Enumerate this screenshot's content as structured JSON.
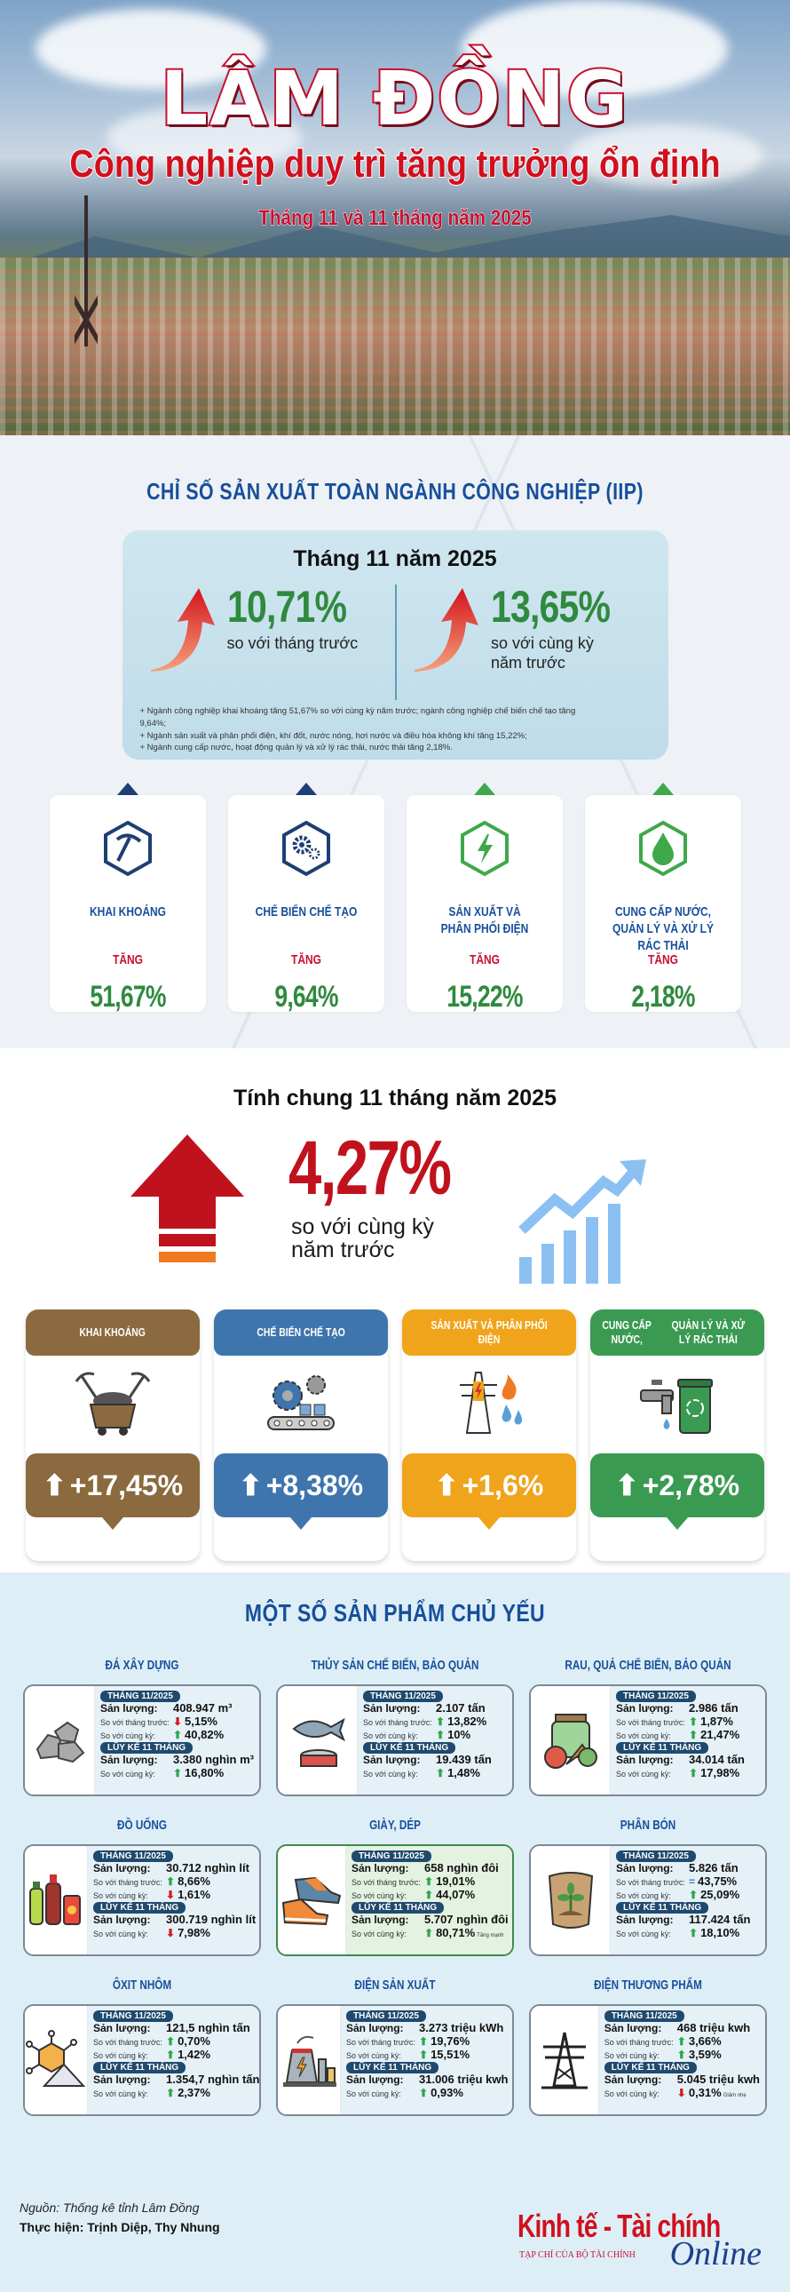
{
  "hero": {
    "title": "LÂM ĐỒNG",
    "subtitle": "Công nghiệp duy trì tăng trưởng ổn định",
    "period": "Tháng 11 và 11 tháng năm 2025"
  },
  "iip": {
    "section_title": "CHỈ SỐ SẢN XUẤT TOÀN NGÀNH CÔNG NGHIỆP (IIP)",
    "box_title": "Tháng 11 năm 2025",
    "mom": {
      "value": "10,71%",
      "label": "so với tháng trước"
    },
    "yoy": {
      "value": "13,65%",
      "label_line1": "so với cùng kỳ",
      "label_line2": "năm trước"
    },
    "notes": [
      "+ Ngành công nghiệp khai khoáng tăng 51,67% so với cùng kỳ năm trước; ngành công nghiệp chế biến chế tạo tăng 9,64%;",
      "+ Ngành sản xuất và phân phối điện, khí đốt, nước nóng, hơi nước và điều hòa không khí tăng 15,22%;",
      "+ Ngành cung cấp nước, hoạt động quản lý và xử lý rác thải, nước thải tăng 2,18%."
    ],
    "sectors": [
      {
        "name": "KHAI KHOÁNG",
        "name2": "",
        "change_label": "TĂNG",
        "value": "51,67%",
        "icon": "pickaxe-icon"
      },
      {
        "name": "CHẾ BIẾN CHẾ TẠO",
        "name2": "",
        "change_label": "TĂNG",
        "value": "9,64%",
        "icon": "gears-icon"
      },
      {
        "name": "SẢN XUẤT VÀ",
        "name2": "PHÂN PHỐI ĐIỆN",
        "change_label": "TĂNG",
        "value": "15,22%",
        "icon": "lightning-icon"
      },
      {
        "name": "CUNG CẤP NƯỚC,",
        "name2": "QUẢN LÝ VÀ XỬ LÝ RÁC THẢI",
        "change_label": "TĂNG",
        "value": "2,18%",
        "icon": "water-drop-icon"
      }
    ]
  },
  "cumulative": {
    "title": "Tính chung 11 tháng năm 2025",
    "value": "4,27%",
    "label_line1": "so với cùng kỳ",
    "label_line2": "năm trước",
    "sectors": [
      {
        "name": "KHAI KHOÁNG",
        "name2": "",
        "value": "+17,45%",
        "color": "#8a6a3e",
        "icon": "mine-cart-icon"
      },
      {
        "name": "CHẾ BIẾN CHẾ TẠO",
        "name2": "",
        "value": "+8,38%",
        "color": "#3f75ad",
        "icon": "conveyor-gears-icon"
      },
      {
        "name": "SẢN XUẤT VÀ PHÂN PHỐI ĐIỆN",
        "name2": "",
        "value": "+1,6%",
        "color": "#f0a41c",
        "icon": "power-tower-icon"
      },
      {
        "name": "CUNG CẤP NƯỚC,",
        "name2": "QUẢN LÝ VÀ XỬ LÝ RÁC THẢI",
        "value": "+2,78%",
        "color": "#3a9a52",
        "icon": "faucet-bin-icon"
      }
    ]
  },
  "products": {
    "section_title": "MỘT SỐ SẢN PHẨM CHỦ YẾU",
    "month_tag": "THÁNG 11/2025",
    "cum_tag": "LŨY KẾ 11 THÁNG",
    "lbl_output": "Sản lượng:",
    "lbl_mom": "So với tháng trước:",
    "lbl_yoy": "So với cùng kỳ:",
    "items": [
      {
        "name": "ĐÁ XÂY DỰNG",
        "icon": "rocks-icon",
        "month_output": "408.947 m³",
        "mom": "5,15%",
        "mom_dir": "down",
        "yoy": "40,82%",
        "yoy_dir": "up",
        "cum_output": "3.380 nghìn m³",
        "cum_yoy": "16,80%",
        "cum_dir": "up",
        "cum_note": ""
      },
      {
        "name": "THỦY SẢN CHẾ BIẾN, BẢO QUẢN",
        "icon": "fish-can-icon",
        "month_output": "2.107 tấn",
        "mom": "13,82%",
        "mom_dir": "up",
        "yoy": "10%",
        "yoy_dir": "up",
        "cum_output": "19.439 tấn",
        "cum_yoy": "1,48%",
        "cum_dir": "up",
        "cum_note": ""
      },
      {
        "name": "RAU, QUẢ CHẾ BIẾN, BẢO QUẢN",
        "icon": "vegetable-jar-icon",
        "month_output": "2.986 tấn",
        "mom": "1,87%",
        "mom_dir": "up",
        "yoy": "21,47%",
        "yoy_dir": "up",
        "cum_output": "34.014 tấn",
        "cum_yoy": "17,98%",
        "cum_dir": "up",
        "cum_note": ""
      },
      {
        "name": "ĐỒ UỐNG",
        "icon": "beverage-bottles-icon",
        "month_output": "30.712 nghìn lít",
        "mom": "8,66%",
        "mom_dir": "up",
        "yoy": "1,61%",
        "yoy_dir": "down",
        "cum_output": "300.719 nghìn lít",
        "cum_yoy": "7,98%",
        "cum_dir": "down",
        "cum_note": ""
      },
      {
        "name": "GIÀY, DÉP",
        "icon": "sneakers-icon",
        "month_output": "658 nghìn đôi",
        "mom": "19,01%",
        "mom_dir": "up",
        "yoy": "44,07%",
        "yoy_dir": "up",
        "cum_output": "5.707 nghìn đôi",
        "cum_yoy": "80,71%",
        "cum_dir": "up",
        "cum_note": "Tăng mạnh"
      },
      {
        "name": "PHÂN BÓN",
        "icon": "fertilizer-bag-icon",
        "month_output": "5.826 tấn",
        "mom": "43,75%",
        "mom_dir": "equal",
        "yoy": "25,09%",
        "yoy_dir": "up",
        "cum_output": "117.424 tấn",
        "cum_yoy": "18,10%",
        "cum_dir": "up",
        "cum_note": ""
      },
      {
        "name": "ÔXIT NHÔM",
        "icon": "alumina-molecule-icon",
        "month_output": "121,5 nghìn tấn",
        "mom": "0,70%",
        "mom_dir": "up",
        "yoy": "1,42%",
        "yoy_dir": "up",
        "cum_output": "1.354,7 nghìn tấn",
        "cum_yoy": "2,37%",
        "cum_dir": "up",
        "cum_note": ""
      },
      {
        "name": "ĐIỆN SẢN XUẤT",
        "icon": "power-plant-icon",
        "month_output": "3.273 triệu kWh",
        "mom": "19,76%",
        "mom_dir": "up",
        "yoy": "15,51%",
        "yoy_dir": "up",
        "cum_output": "31.006 triệu kwh",
        "cum_yoy": "0,93%",
        "cum_dir": "up",
        "cum_note": ""
      },
      {
        "name": "ĐIỆN THƯƠNG PHẨM",
        "icon": "transmission-tower-icon",
        "month_output": "468 triệu kwh",
        "mom": "3,66%",
        "mom_dir": "up",
        "yoy": "3,59%",
        "yoy_dir": "up",
        "cum_output": "5.045 triệu kwh",
        "cum_yoy": "0,31%",
        "cum_dir": "down",
        "cum_note": "Giảm nhẹ"
      }
    ]
  },
  "footer": {
    "source": "Nguồn: Thống kê tỉnh Lâm Đồng",
    "credit": "Thực hiện: Trịnh Diệp, Thy Nhung",
    "logo_main": "Kinh tế - Tài chính",
    "logo_sub": "TẠP CHÍ CỦA BỘ TÀI CHÍNH",
    "logo_online": "Online"
  },
  "colors": {
    "title_red": "#c8102e",
    "heading_blue": "#164f9c",
    "value_green": "#2f8a3e",
    "mining_brown": "#8a6a3e",
    "manufacturing_blue": "#3f75ad",
    "electricity_orange": "#f0a41c",
    "water_green": "#3a9a52"
  }
}
